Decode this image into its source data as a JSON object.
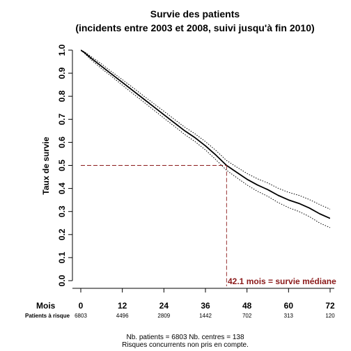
{
  "chart_data": {
    "type": "line",
    "title": "Survie des patients",
    "subtitle": "(incidents entre 2003 et 2008, suivi jusqu'à fin 2010)",
    "ylabel": "Taux de survie",
    "xlabel": "Mois",
    "xlim": [
      0,
      72
    ],
    "ylim": [
      0,
      1
    ],
    "x_ticks": [
      "0",
      "12",
      "24",
      "36",
      "48",
      "60",
      "72"
    ],
    "y_ticks": [
      "0.0",
      "0.1",
      "0.2",
      "0.3",
      "0.4",
      "0.5",
      "0.6",
      "0.7",
      "0.8",
      "0.9",
      "1.0"
    ],
    "series": [
      {
        "role": "estimate",
        "x": [
          0,
          1,
          3,
          6,
          9,
          12,
          15,
          18,
          21,
          24,
          27,
          30,
          33,
          36,
          39,
          42.1,
          45,
          48,
          51,
          54,
          57,
          60,
          63,
          66,
          69,
          72
        ],
        "y": [
          1.0,
          0.99,
          0.965,
          0.93,
          0.895,
          0.86,
          0.825,
          0.79,
          0.755,
          0.72,
          0.685,
          0.65,
          0.62,
          0.585,
          0.545,
          0.5,
          0.47,
          0.44,
          0.415,
          0.395,
          0.37,
          0.35,
          0.335,
          0.315,
          0.29,
          0.27
        ]
      },
      {
        "role": "upper-ci",
        "x": [
          0,
          1,
          3,
          6,
          9,
          12,
          15,
          18,
          21,
          24,
          27,
          30,
          33,
          36,
          39,
          42.1,
          45,
          48,
          51,
          54,
          57,
          60,
          63,
          66,
          69,
          72
        ],
        "y": [
          1.0,
          0.993,
          0.972,
          0.94,
          0.905,
          0.872,
          0.838,
          0.803,
          0.769,
          0.735,
          0.7,
          0.666,
          0.637,
          0.603,
          0.565,
          0.521,
          0.493,
          0.465,
          0.442,
          0.424,
          0.401,
          0.383,
          0.37,
          0.352,
          0.33,
          0.31
        ]
      },
      {
        "role": "lower-ci",
        "x": [
          0,
          1,
          3,
          6,
          9,
          12,
          15,
          18,
          21,
          24,
          27,
          30,
          33,
          36,
          39,
          42.1,
          45,
          48,
          51,
          54,
          57,
          60,
          63,
          66,
          69,
          72
        ],
        "y": [
          1.0,
          0.987,
          0.958,
          0.92,
          0.885,
          0.848,
          0.812,
          0.777,
          0.741,
          0.705,
          0.67,
          0.634,
          0.603,
          0.567,
          0.525,
          0.479,
          0.447,
          0.415,
          0.388,
          0.366,
          0.339,
          0.317,
          0.3,
          0.278,
          0.25,
          0.23
        ]
      }
    ],
    "median": {
      "x": 42.1,
      "y": 0.5,
      "label": "42.1 mois = survie médiane"
    },
    "risk_table": {
      "label": "Patients à risque",
      "values": [
        "6803",
        "4496",
        "2809",
        "1442",
        "702",
        "313",
        "120"
      ]
    },
    "footnotes": [
      "Nb. patients = 6803     Nb. centres = 138",
      "Risques concurrents non pris en compte."
    ],
    "colors": {
      "line": "#000000",
      "median": "#8b1a1a"
    },
    "grid": false
  }
}
